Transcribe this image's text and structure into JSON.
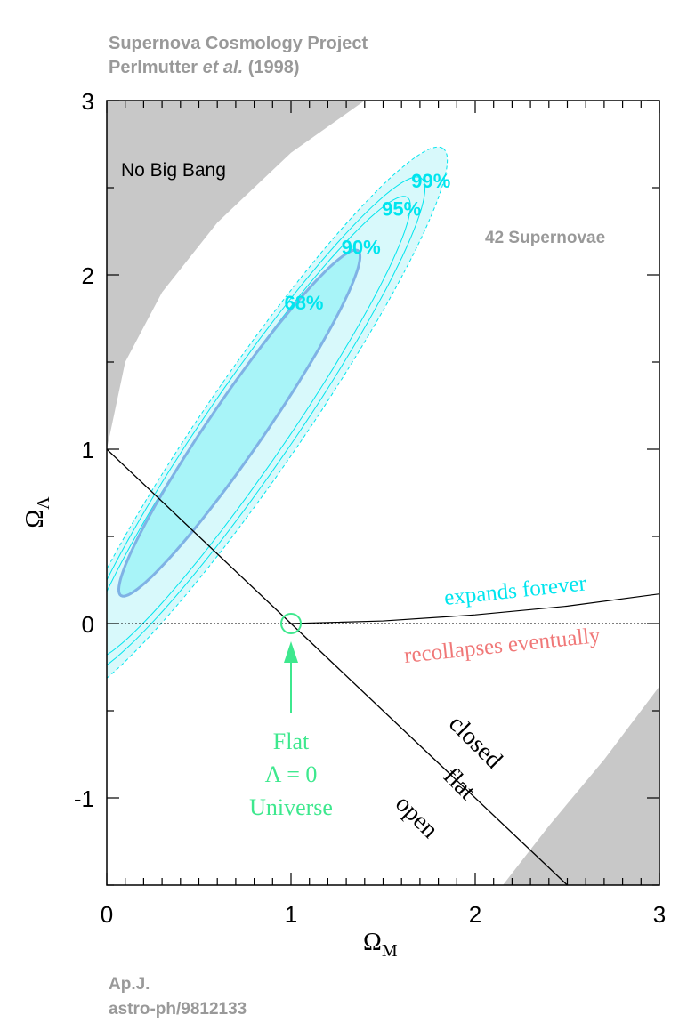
{
  "header": {
    "line1": "Supernova Cosmology Project",
    "line2_prefix": "Perlmutter ",
    "line2_italic": "et al.",
    "line2_suffix": " (1998)"
  },
  "footer": {
    "line1": "Ap.J.",
    "line2": "astro-ph/9812133"
  },
  "colors": {
    "gray_region": "#c8c8c8",
    "contour": "#00e5ee",
    "contour_68_fill": "#a8f4f8",
    "contour_outer_fill": "#d8f9fb",
    "contour_68_line": "#7fb2e5",
    "flat_marker": "#3ee88e",
    "recollapse": "#f07878",
    "header_text": "#999999"
  },
  "chart_data": {
    "type": "contour",
    "xlabel": "Ω",
    "xlabel_sub": "M",
    "ylabel": "Ω",
    "ylabel_sub": "Λ",
    "xlim": [
      0,
      3
    ],
    "ylim": [
      -1.5,
      3
    ],
    "x_ticks": [
      "0",
      "1",
      "2",
      "3"
    ],
    "y_ticks": [
      "3",
      "2",
      "1",
      "0",
      "-1"
    ],
    "annotations": {
      "no_big_bang": "No Big Bang",
      "supernovae": "42 Supernovae",
      "expands": "expands forever",
      "recollapses": "recollapses eventually",
      "closed": "closed",
      "flat": "flat",
      "open": "open",
      "flat_universe_line1": "Flat",
      "flat_universe_line2": "Λ = 0",
      "flat_universe_line3": "Universe"
    },
    "confidence_levels": [
      {
        "label": "68%",
        "label_at": [
          1.07,
          1.8
        ]
      },
      {
        "label": "90%",
        "label_at": [
          1.38,
          2.12
        ]
      },
      {
        "label": "95%",
        "label_at": [
          1.6,
          2.34
        ]
      },
      {
        "label": "99%",
        "label_at": [
          1.76,
          2.5
        ]
      }
    ],
    "contours": [
      {
        "level": "99%",
        "center": [
          0.8,
          1.15
        ],
        "angle_deg": 57,
        "a": 1.88,
        "b": 0.27
      },
      {
        "level": "95%",
        "center": [
          0.78,
          1.13
        ],
        "angle_deg": 57,
        "a": 1.7,
        "b": 0.24
      },
      {
        "level": "90%",
        "center": [
          0.77,
          1.12
        ],
        "angle_deg": 57,
        "a": 1.58,
        "b": 0.21
      },
      {
        "level": "68%",
        "center": [
          0.72,
          1.15
        ],
        "angle_deg": 57,
        "a": 1.18,
        "b": 0.15
      }
    ],
    "flat_line": {
      "x": [
        0,
        2.5
      ],
      "y": [
        1,
        -1.5
      ]
    },
    "zero_lambda_marker": [
      1,
      0
    ],
    "expansion_boundary": {
      "x": [
        1.0,
        1.5,
        2.0,
        2.5,
        3.0
      ],
      "y": [
        0,
        0.015,
        0.05,
        0.1,
        0.17
      ]
    },
    "no_big_bang_boundary": {
      "x": [
        0,
        0.1,
        0.3,
        0.6,
        1.0,
        1.4
      ],
      "y": [
        1.0,
        1.5,
        1.9,
        2.3,
        2.7,
        3.0
      ]
    },
    "gray_corner": {
      "x": [
        2.15,
        2.4,
        2.7,
        3.0
      ],
      "y": [
        -1.5,
        -1.16,
        -0.78,
        -0.36
      ]
    }
  }
}
